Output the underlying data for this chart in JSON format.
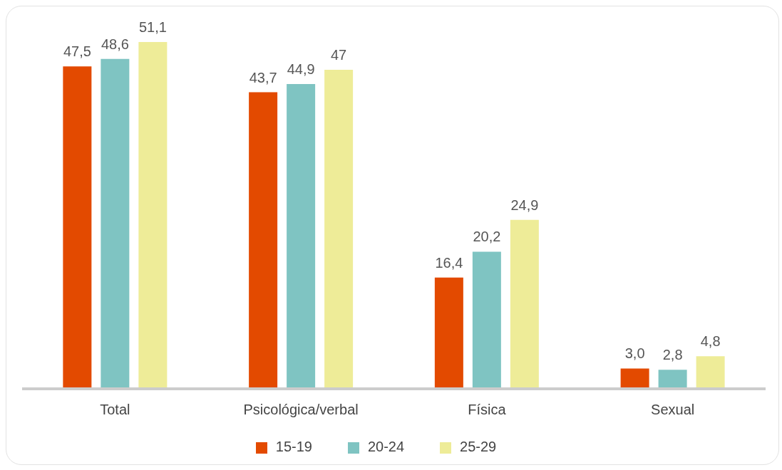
{
  "chart_data": {
    "type": "bar",
    "categories": [
      "Total",
      "Psicológica/verbal",
      "Física",
      "Sexual"
    ],
    "series": [
      {
        "name": "15-19",
        "color": "#e34a00",
        "values": [
          47.5,
          43.7,
          16.4,
          3.0
        ],
        "value_labels": [
          "47,5",
          "43,7",
          "16,4",
          "3,0"
        ]
      },
      {
        "name": "20-24",
        "color": "#7fc4c2",
        "values": [
          48.6,
          44.9,
          20.2,
          2.8
        ],
        "value_labels": [
          "48,6",
          "44,9",
          "20,2",
          "2,8"
        ]
      },
      {
        "name": "25-29",
        "color": "#eeec98",
        "values": [
          51.1,
          47,
          24.9,
          4.8
        ],
        "value_labels": [
          "51,1",
          "47",
          "24,9",
          "4,8"
        ]
      }
    ],
    "grid": false,
    "legend": "bottom"
  }
}
